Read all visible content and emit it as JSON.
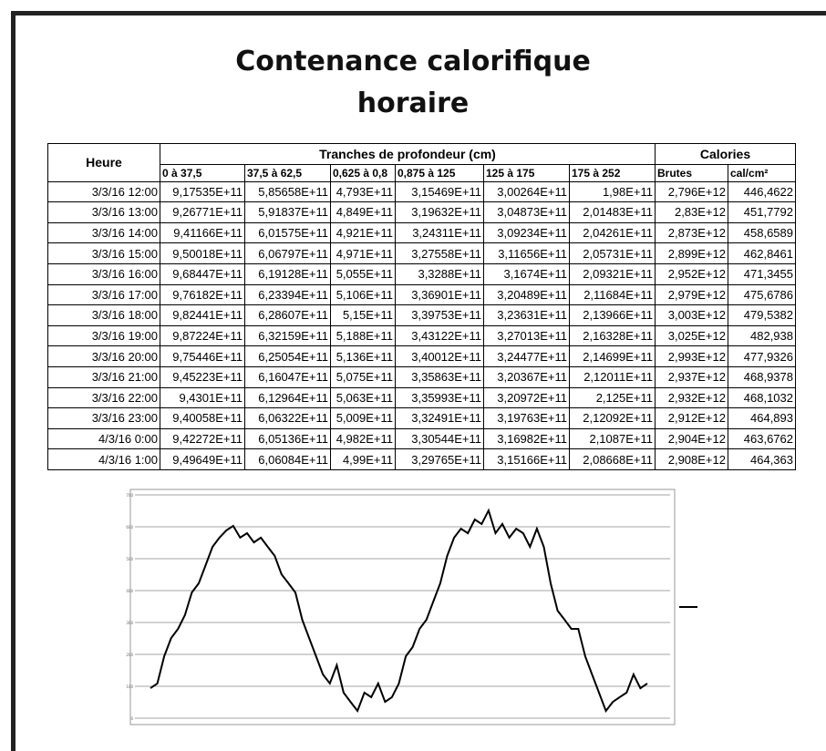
{
  "header": {
    "title_line1": "Contenance calorifique",
    "title_line2": "horaire"
  },
  "table": {
    "head": {
      "heure": "Heure",
      "group1": "Tranches de profondeur (cm)",
      "group2": "Calories",
      "cols": [
        "0 à 37,5",
        "37,5 à 62,5",
        "0,625 à 0,8",
        "0,875 à 125",
        "125 à 175",
        "175 à 252",
        "Brutes",
        "cal/cm²"
      ]
    },
    "rows": [
      [
        "3/3/16 12:00",
        "9,17535E+11",
        "5,85658E+11",
        "4,793E+11",
        "3,15469E+11",
        "3,00264E+11",
        "1,98E+11",
        "2,796E+12",
        "446,4622"
      ],
      [
        "3/3/16 13:00",
        "9,26771E+11",
        "5,91837E+11",
        "4,849E+11",
        "3,19632E+11",
        "3,04873E+11",
        "2,01483E+11",
        "2,83E+12",
        "451,7792"
      ],
      [
        "3/3/16 14:00",
        "9,41166E+11",
        "6,01575E+11",
        "4,921E+11",
        "3,24311E+11",
        "3,09234E+11",
        "2,04261E+11",
        "2,873E+12",
        "458,6589"
      ],
      [
        "3/3/16 15:00",
        "9,50018E+11",
        "6,06797E+11",
        "4,971E+11",
        "3,27558E+11",
        "3,11656E+11",
        "2,05731E+11",
        "2,899E+12",
        "462,8461"
      ],
      [
        "3/3/16 16:00",
        "9,68447E+11",
        "6,19128E+11",
        "5,055E+11",
        "3,3288E+11",
        "3,1674E+11",
        "2,09321E+11",
        "2,952E+12",
        "471,3455"
      ],
      [
        "3/3/16 17:00",
        "9,76182E+11",
        "6,23394E+11",
        "5,106E+11",
        "3,36901E+11",
        "3,20489E+11",
        "2,11684E+11",
        "2,979E+12",
        "475,6786"
      ],
      [
        "3/3/16 18:00",
        "9,82441E+11",
        "6,28607E+11",
        "5,15E+11",
        "3,39753E+11",
        "3,23631E+11",
        "2,13966E+11",
        "3,003E+12",
        "479,5382"
      ],
      [
        "3/3/16 19:00",
        "9,87224E+11",
        "6,32159E+11",
        "5,188E+11",
        "3,43122E+11",
        "3,27013E+11",
        "2,16328E+11",
        "3,025E+12",
        "482,938"
      ],
      [
        "3/3/16 20:00",
        "9,75446E+11",
        "6,25054E+11",
        "5,136E+11",
        "3,40012E+11",
        "3,24477E+11",
        "2,14699E+11",
        "2,993E+12",
        "477,9326"
      ],
      [
        "3/3/16 21:00",
        "9,45223E+11",
        "6,16047E+11",
        "5,075E+11",
        "3,35863E+11",
        "3,20367E+11",
        "2,12011E+11",
        "2,937E+12",
        "468,9378"
      ],
      [
        "3/3/16 22:00",
        "9,4301E+11",
        "6,12964E+11",
        "5,063E+11",
        "3,35993E+11",
        "3,20972E+11",
        "2,125E+11",
        "2,932E+12",
        "468,1032"
      ],
      [
        "3/3/16 23:00",
        "9,40058E+11",
        "6,06322E+11",
        "5,009E+11",
        "3,32491E+11",
        "3,19763E+11",
        "2,12092E+11",
        "2,912E+12",
        "464,893"
      ],
      [
        "4/3/16 0:00",
        "9,42272E+11",
        "6,05136E+11",
        "4,982E+11",
        "3,30544E+11",
        "3,16982E+11",
        "2,1087E+11",
        "2,904E+12",
        "463,6762"
      ],
      [
        "4/3/16 1:00",
        "9,49649E+11",
        "6,06084E+11",
        "4,99E+11",
        "3,29765E+11",
        "3,15166E+11",
        "2,08668E+11",
        "2,908E+12",
        "464,363"
      ]
    ]
  },
  "chart_data": {
    "type": "line",
    "color": "#000000",
    "grid": true,
    "ylim": [
      0,
      700
    ],
    "yticks": [
      0,
      100,
      200,
      300,
      400,
      500,
      600,
      700
    ],
    "values": [
      94,
      109,
      194,
      251,
      280,
      323,
      394,
      423,
      480,
      537,
      566,
      589,
      603,
      566,
      580,
      551,
      566,
      537,
      509,
      451,
      423,
      394,
      309,
      251,
      194,
      137,
      109,
      166,
      80,
      51,
      23,
      80,
      66,
      109,
      51,
      66,
      109,
      194,
      223,
      280,
      309,
      366,
      423,
      509,
      566,
      594,
      580,
      623,
      609,
      651,
      580,
      609,
      566,
      594,
      580,
      537,
      594,
      537,
      423,
      337,
      309,
      280,
      280,
      194,
      137,
      80,
      23,
      51,
      66,
      80,
      137,
      94,
      109
    ]
  }
}
